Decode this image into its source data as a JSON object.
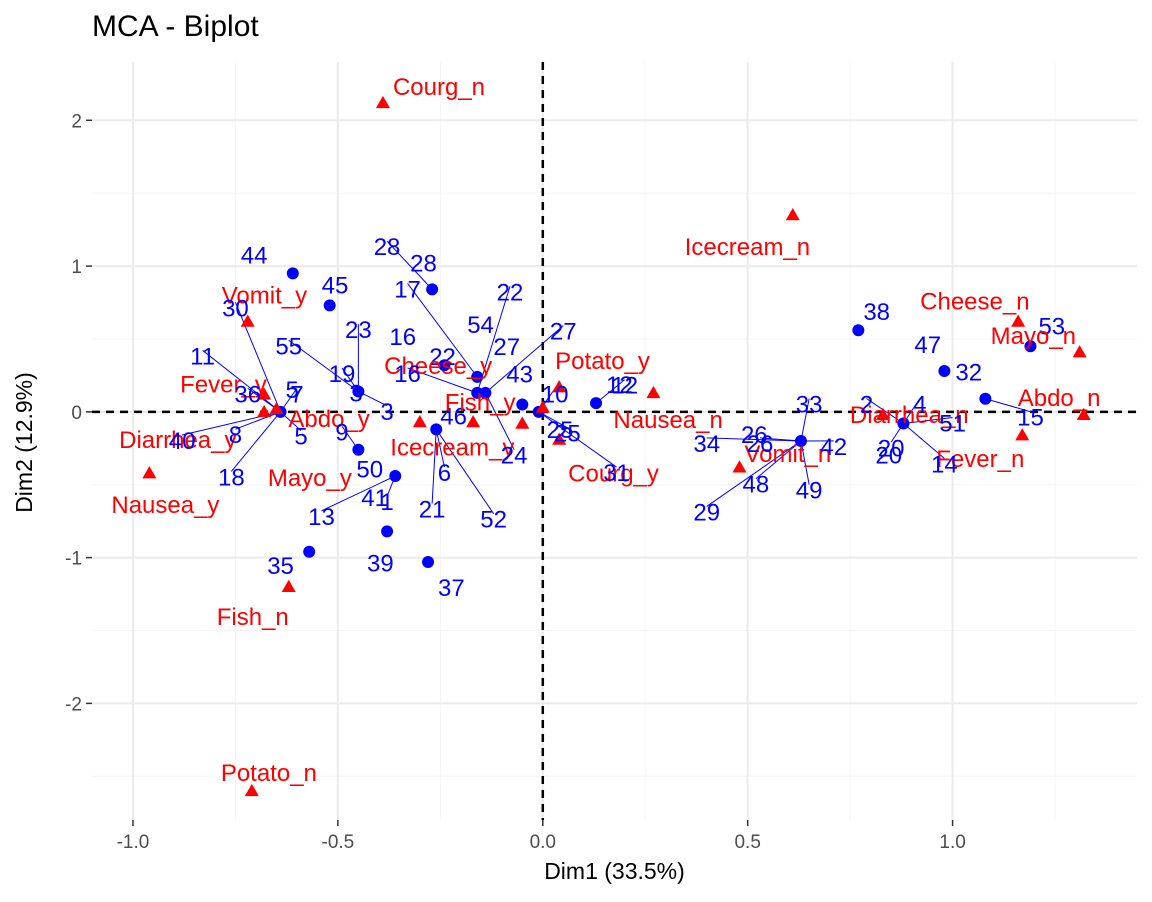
{
  "chart_data": {
    "type": "scatter",
    "title": "MCA - Biplot",
    "xlabel": "Dim1 (33.5%)",
    "ylabel": "Dim2 (12.9%)",
    "xlim": [
      -1.1,
      1.45
    ],
    "ylim": [
      -2.8,
      2.4
    ],
    "x_ticks": [
      -1.0,
      -0.5,
      0.0,
      0.5,
      1.0
    ],
    "x_tick_labels": [
      "-1.0",
      "-0.5",
      "0.0",
      "0.5",
      "1.0"
    ],
    "y_ticks": [
      -2,
      -1,
      0,
      1,
      2
    ],
    "y_tick_labels": [
      "-2",
      "-1",
      "0",
      "1",
      "2"
    ],
    "grid": true,
    "reference_lines": {
      "x": 0,
      "y": 0,
      "style": "dashed"
    },
    "colors": {
      "individuals": "#0000ff",
      "variables": "#ff0000",
      "grid_major": "#ebebeb",
      "grid_minor": "#f5f5f5",
      "reference": "#000000"
    },
    "series": [
      {
        "name": "individuals",
        "marker": "circle",
        "points": [
          {
            "x": -0.64,
            "y": 0.0,
            "label": "5"
          },
          {
            "x": -0.45,
            "y": 0.14,
            "label": "3"
          },
          {
            "x": -0.61,
            "y": 0.95,
            "label": "44"
          },
          {
            "x": -0.52,
            "y": 0.73,
            "label": "45"
          },
          {
            "x": -0.27,
            "y": 0.84,
            "label": "28"
          },
          {
            "x": -0.24,
            "y": 0.32,
            "label": "16"
          },
          {
            "x": -0.16,
            "y": 0.24,
            "label": "54"
          },
          {
            "x": -0.16,
            "y": 0.13,
            "label": "22"
          },
          {
            "x": -0.14,
            "y": 0.13,
            "label": "27"
          },
          {
            "x": -0.05,
            "y": 0.05,
            "label": "43"
          },
          {
            "x": -0.01,
            "y": 0.0,
            "label": "25"
          },
          {
            "x": 0.13,
            "y": 0.06,
            "label": "12"
          },
          {
            "x": -0.26,
            "y": -0.12,
            "label": "46"
          },
          {
            "x": -0.45,
            "y": -0.26,
            "label": "50"
          },
          {
            "x": -0.36,
            "y": -0.44,
            "label": "41"
          },
          {
            "x": -0.38,
            "y": -0.82,
            "label": "39"
          },
          {
            "x": -0.28,
            "y": -1.03,
            "label": "37"
          },
          {
            "x": -0.57,
            "y": -0.96,
            "label": "35"
          },
          {
            "x": 0.63,
            "y": -0.2,
            "label": "26"
          },
          {
            "x": 0.77,
            "y": 0.56,
            "label": "38"
          },
          {
            "x": 0.98,
            "y": 0.28,
            "label": "47"
          },
          {
            "x": 0.88,
            "y": -0.08,
            "label": "20"
          },
          {
            "x": 1.08,
            "y": 0.09,
            "label": "32"
          },
          {
            "x": 1.19,
            "y": 0.45,
            "label": "53"
          }
        ]
      },
      {
        "name": "variables",
        "marker": "triangle",
        "points": [
          {
            "x": -0.39,
            "y": 2.12,
            "label": "Courg_n"
          },
          {
            "x": 0.61,
            "y": 1.35,
            "label": "Icecream_n"
          },
          {
            "x": -0.72,
            "y": 0.62,
            "label": "Vomit_y"
          },
          {
            "x": -0.68,
            "y": 0.12,
            "label": "Fever_y"
          },
          {
            "x": -0.96,
            "y": -0.42,
            "label": "Nausea_y"
          },
          {
            "x": -0.68,
            "y": 0.0,
            "label": "Diarrhea_y"
          },
          {
            "x": -0.65,
            "y": 0.02,
            "label": "Abdo_y"
          },
          {
            "x": -0.3,
            "y": -0.07,
            "label": "Mayo_y"
          },
          {
            "x": -0.17,
            "y": -0.07,
            "label": "Cheese_y"
          },
          {
            "x": -0.05,
            "y": -0.08,
            "label": "Icecream_y"
          },
          {
            "x": 0.0,
            "y": 0.03,
            "label": "Fish_y"
          },
          {
            "x": 0.04,
            "y": 0.17,
            "label": "Potato_y"
          },
          {
            "x": 0.04,
            "y": -0.19,
            "label": "Courg_y"
          },
          {
            "x": 0.27,
            "y": 0.13,
            "label": "Nausea_n"
          },
          {
            "x": 0.48,
            "y": -0.38,
            "label": "Vomit_n"
          },
          {
            "x": -0.62,
            "y": -1.2,
            "label": "Fish_n"
          },
          {
            "x": -0.71,
            "y": -2.6,
            "label": "Potato_n"
          },
          {
            "x": 0.83,
            "y": -0.02,
            "label": "Diarrhea_n"
          },
          {
            "x": 1.16,
            "y": 0.62,
            "label": "Cheese_n"
          },
          {
            "x": 1.31,
            "y": 0.41,
            "label": "Mayo_n"
          },
          {
            "x": 1.32,
            "y": -0.02,
            "label": "Abdo_n"
          },
          {
            "x": 1.17,
            "y": -0.16,
            "label": "Fever_n"
          }
        ]
      }
    ],
    "text_labels": [
      {
        "text": "1",
        "color": "ind",
        "tx": -0.38,
        "ty": -0.62,
        "ax": -0.36,
        "ay": -0.44
      },
      {
        "text": "2",
        "color": "ind",
        "tx": 0.79,
        "ty": 0.05,
        "ax": 0.88,
        "ay": -0.08
      },
      {
        "text": "3",
        "color": "ind",
        "tx": -0.38,
        "ty": 0.0,
        "ax": -0.45,
        "ay": 0.14
      },
      {
        "text": "4",
        "color": "ind",
        "tx": 0.92,
        "ty": 0.05,
        "ax": 0.88,
        "ay": -0.08
      },
      {
        "text": "5",
        "color": "ind",
        "tx": -0.59,
        "ty": -0.17,
        "ax": -0.64,
        "ay": 0.0
      },
      {
        "text": "6",
        "color": "ind",
        "tx": -0.24,
        "ty": -0.42,
        "ax": -0.26,
        "ay": -0.12
      },
      {
        "text": "7",
        "color": "ind",
        "tx": -0.6,
        "ty": 0.12,
        "ax": -0.64,
        "ay": 0.0
      },
      {
        "text": "8",
        "color": "ind",
        "tx": -0.75,
        "ty": -0.16,
        "ax": -0.64,
        "ay": 0.0
      },
      {
        "text": "9",
        "color": "ind",
        "tx": -0.49,
        "ty": -0.14,
        "ax": -0.45,
        "ay": -0.26
      },
      {
        "text": "10",
        "color": "ind",
        "tx": 0.03,
        "ty": 0.12,
        "ax": -0.01,
        "ay": 0.0
      },
      {
        "text": "11",
        "color": "ind",
        "tx": -0.83,
        "ty": 0.38,
        "ax": -0.64,
        "ay": 0.0
      },
      {
        "text": "12",
        "color": "ind",
        "tx": 0.2,
        "ty": 0.18,
        "ax": 0.13,
        "ay": 0.06
      },
      {
        "text": "13",
        "color": "ind",
        "tx": -0.54,
        "ty": -0.72,
        "ax": -0.36,
        "ay": -0.44
      },
      {
        "text": "14",
        "color": "ind",
        "tx": 0.98,
        "ty": -0.36,
        "ax": 0.88,
        "ay": -0.08
      },
      {
        "text": "15",
        "color": "ind",
        "tx": 1.19,
        "ty": -0.04,
        "ax": 1.08,
        "ay": 0.09
      },
      {
        "text": "16",
        "color": "ind",
        "tx": -0.33,
        "ty": 0.26,
        "ax": -0.16,
        "ay": 0.13
      },
      {
        "text": "17",
        "color": "ind",
        "tx": -0.33,
        "ty": 0.84,
        "ax": -0.16,
        "ay": 0.24
      },
      {
        "text": "18",
        "color": "ind",
        "tx": -0.76,
        "ty": -0.45,
        "ax": -0.64,
        "ay": 0.0
      },
      {
        "text": "19",
        "color": "ind",
        "tx": -0.49,
        "ty": 0.26,
        "ax": -0.45,
        "ay": 0.14
      },
      {
        "text": "20",
        "color": "ind",
        "tx": 0.85,
        "ty": -0.25,
        "ax": 0.88,
        "ay": -0.08
      },
      {
        "text": "21",
        "color": "ind",
        "tx": -0.27,
        "ty": -0.67,
        "ax": -0.26,
        "ay": -0.12
      },
      {
        "text": "22",
        "color": "ind",
        "tx": -0.08,
        "ty": 0.82,
        "ax": -0.16,
        "ay": 0.13
      },
      {
        "text": "23",
        "color": "ind",
        "tx": -0.45,
        "ty": 0.56,
        "ax": -0.45,
        "ay": 0.14
      },
      {
        "text": "24",
        "color": "ind",
        "tx": -0.07,
        "ty": -0.3,
        "ax": -0.14,
        "ay": 0.13
      },
      {
        "text": "25",
        "color": "ind",
        "tx": 0.06,
        "ty": -0.15,
        "ax": -0.01,
        "ay": 0.0
      },
      {
        "text": "26",
        "color": "ind",
        "tx": 0.53,
        "ty": -0.22,
        "ax": 0.63,
        "ay": -0.2
      },
      {
        "text": "27",
        "color": "ind",
        "tx": 0.05,
        "ty": 0.55,
        "ax": -0.14,
        "ay": 0.13
      },
      {
        "text": "28",
        "color": "ind",
        "tx": -0.38,
        "ty": 1.13,
        "ax": -0.27,
        "ay": 0.84
      },
      {
        "text": "29",
        "color": "ind",
        "tx": 0.4,
        "ty": -0.69,
        "ax": 0.63,
        "ay": -0.2
      },
      {
        "text": "30",
        "color": "ind",
        "tx": -0.75,
        "ty": 0.71,
        "ax": -0.64,
        "ay": 0.0
      },
      {
        "text": "31",
        "color": "ind",
        "tx": 0.18,
        "ty": -0.42,
        "ax": -0.01,
        "ay": 0.0
      },
      {
        "text": "33",
        "color": "ind",
        "tx": 0.65,
        "ty": 0.05,
        "ax": 0.63,
        "ay": -0.2
      },
      {
        "text": "34",
        "color": "ind",
        "tx": 0.4,
        "ty": -0.22,
        "ax": 0.63,
        "ay": -0.2
      },
      {
        "text": "36",
        "color": "ind",
        "tx": -0.72,
        "ty": 0.12,
        "ax": -0.64,
        "ay": 0.0
      },
      {
        "text": "40",
        "color": "ind",
        "tx": -0.88,
        "ty": -0.2,
        "ax": -0.64,
        "ay": 0.0
      },
      {
        "text": "42",
        "color": "ind",
        "tx": 0.71,
        "ty": -0.24,
        "ax": 0.63,
        "ay": -0.2
      },
      {
        "text": "48",
        "color": "ind",
        "tx": 0.52,
        "ty": -0.5,
        "ax": 0.63,
        "ay": -0.2
      },
      {
        "text": "49",
        "color": "ind",
        "tx": 0.65,
        "ty": -0.54,
        "ax": 0.63,
        "ay": -0.2
      },
      {
        "text": "51",
        "color": "ind",
        "tx": 1.0,
        "ty": -0.08,
        "ax": 0.88,
        "ay": -0.08
      },
      {
        "text": "52",
        "color": "ind",
        "tx": -0.12,
        "ty": -0.74,
        "ax": -0.26,
        "ay": -0.12
      },
      {
        "text": "55",
        "color": "ind",
        "tx": -0.62,
        "ty": 0.45,
        "ax": -0.45,
        "ay": 0.14
      }
    ]
  }
}
